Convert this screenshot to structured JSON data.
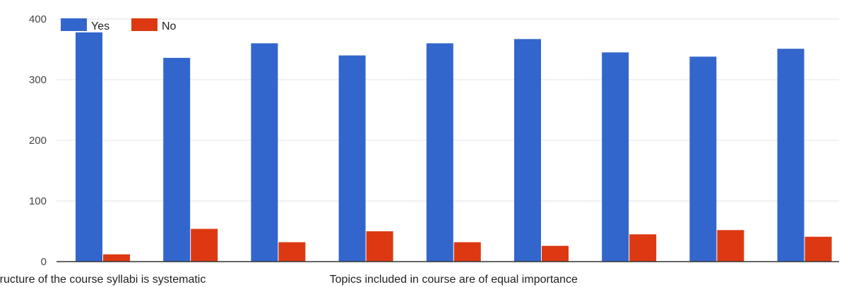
{
  "chart_data": {
    "type": "bar",
    "title": "",
    "xlabel": "",
    "ylabel": "",
    "ylim": [
      0,
      400
    ],
    "yticks": [
      0,
      100,
      200,
      300,
      400
    ],
    "grid": true,
    "legend_position": "top-left",
    "categories": [
      "ructure of the course syllabi is systematic",
      "",
      "",
      "",
      "Topics included in course are of equal importance",
      "",
      "",
      "",
      ""
    ],
    "series": [
      {
        "name": "Yes",
        "color": "#3366cc",
        "values": [
          378,
          336,
          360,
          340,
          360,
          367,
          345,
          338,
          351
        ]
      },
      {
        "name": "No",
        "color": "#dc3912",
        "values": [
          12,
          54,
          32,
          50,
          32,
          26,
          45,
          52,
          41
        ]
      }
    ]
  }
}
